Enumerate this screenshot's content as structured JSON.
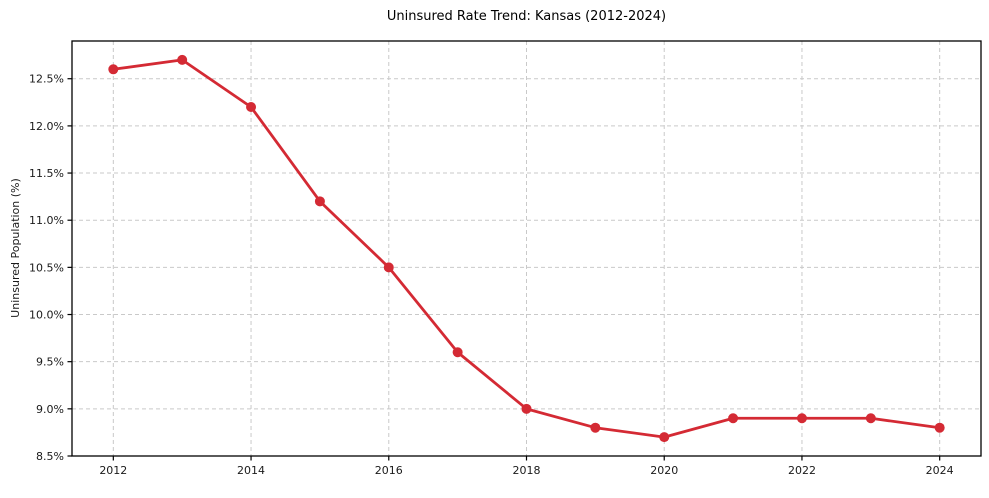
{
  "figure": {
    "background": "#ffffff"
  },
  "chart_data": {
    "type": "line",
    "title": "Uninsured Rate Trend: Kansas (2012-2024)",
    "xlabel": "",
    "ylabel": "Uninsured Population (%)",
    "x": [
      2012,
      2013,
      2014,
      2015,
      2016,
      2017,
      2018,
      2019,
      2020,
      2021,
      2022,
      2023,
      2024
    ],
    "values": [
      12.6,
      12.7,
      12.2,
      11.2,
      10.5,
      9.6,
      9.0,
      8.8,
      8.7,
      8.9,
      8.9,
      8.9,
      8.8
    ],
    "xlim": [
      2011.4,
      2024.6
    ],
    "ylim": [
      8.5,
      12.9
    ],
    "xticks": [
      2012,
      2014,
      2016,
      2018,
      2020,
      2022,
      2024
    ],
    "xtick_labels": [
      "2012",
      "2014",
      "2016",
      "2018",
      "2020",
      "2022",
      "2024"
    ],
    "yticks": [
      8.5,
      9.0,
      9.5,
      10.0,
      10.5,
      11.0,
      11.5,
      12.0,
      12.5
    ],
    "ytick_labels": [
      "8.5%",
      "9.0%",
      "9.5%",
      "10.0%",
      "10.5%",
      "11.0%",
      "11.5%",
      "12.0%",
      "12.5%"
    ],
    "grid": true,
    "grid_style": "dashed",
    "legend": false,
    "marker": "circle",
    "line_color": "#d42a34",
    "grid_color": "#c9c9c9",
    "axis_color": "#000000",
    "text_color": "#1a1a1a"
  }
}
